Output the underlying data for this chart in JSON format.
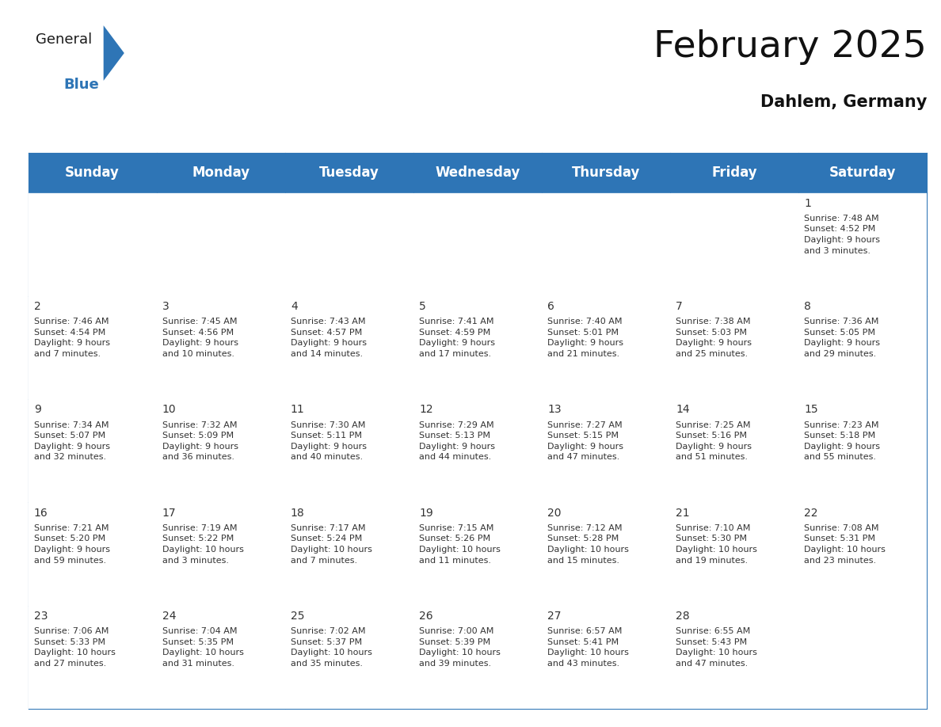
{
  "title": "February 2025",
  "subtitle": "Dahlem, Germany",
  "header_color": "#2E75B6",
  "header_text_color": "#FFFFFF",
  "cell_bg_color": "#FFFFFF",
  "border_color": "#2E75B6",
  "text_color": "#333333",
  "day_headers": [
    "Sunday",
    "Monday",
    "Tuesday",
    "Wednesday",
    "Thursday",
    "Friday",
    "Saturday"
  ],
  "title_fontsize": 34,
  "subtitle_fontsize": 15,
  "header_fontsize": 12,
  "day_num_fontsize": 10,
  "cell_fontsize": 8,
  "background_color": "#FFFFFF",
  "logo_text1": "General",
  "logo_text2": "Blue",
  "logo_color1": "#1a1a1a",
  "logo_color2": "#2E75B6",
  "logo_triangle_color": "#2E75B6",
  "weeks": [
    [
      {
        "day": null,
        "info": null
      },
      {
        "day": null,
        "info": null
      },
      {
        "day": null,
        "info": null
      },
      {
        "day": null,
        "info": null
      },
      {
        "day": null,
        "info": null
      },
      {
        "day": null,
        "info": null
      },
      {
        "day": 1,
        "info": "Sunrise: 7:48 AM\nSunset: 4:52 PM\nDaylight: 9 hours\nand 3 minutes."
      }
    ],
    [
      {
        "day": 2,
        "info": "Sunrise: 7:46 AM\nSunset: 4:54 PM\nDaylight: 9 hours\nand 7 minutes."
      },
      {
        "day": 3,
        "info": "Sunrise: 7:45 AM\nSunset: 4:56 PM\nDaylight: 9 hours\nand 10 minutes."
      },
      {
        "day": 4,
        "info": "Sunrise: 7:43 AM\nSunset: 4:57 PM\nDaylight: 9 hours\nand 14 minutes."
      },
      {
        "day": 5,
        "info": "Sunrise: 7:41 AM\nSunset: 4:59 PM\nDaylight: 9 hours\nand 17 minutes."
      },
      {
        "day": 6,
        "info": "Sunrise: 7:40 AM\nSunset: 5:01 PM\nDaylight: 9 hours\nand 21 minutes."
      },
      {
        "day": 7,
        "info": "Sunrise: 7:38 AM\nSunset: 5:03 PM\nDaylight: 9 hours\nand 25 minutes."
      },
      {
        "day": 8,
        "info": "Sunrise: 7:36 AM\nSunset: 5:05 PM\nDaylight: 9 hours\nand 29 minutes."
      }
    ],
    [
      {
        "day": 9,
        "info": "Sunrise: 7:34 AM\nSunset: 5:07 PM\nDaylight: 9 hours\nand 32 minutes."
      },
      {
        "day": 10,
        "info": "Sunrise: 7:32 AM\nSunset: 5:09 PM\nDaylight: 9 hours\nand 36 minutes."
      },
      {
        "day": 11,
        "info": "Sunrise: 7:30 AM\nSunset: 5:11 PM\nDaylight: 9 hours\nand 40 minutes."
      },
      {
        "day": 12,
        "info": "Sunrise: 7:29 AM\nSunset: 5:13 PM\nDaylight: 9 hours\nand 44 minutes."
      },
      {
        "day": 13,
        "info": "Sunrise: 7:27 AM\nSunset: 5:15 PM\nDaylight: 9 hours\nand 47 minutes."
      },
      {
        "day": 14,
        "info": "Sunrise: 7:25 AM\nSunset: 5:16 PM\nDaylight: 9 hours\nand 51 minutes."
      },
      {
        "day": 15,
        "info": "Sunrise: 7:23 AM\nSunset: 5:18 PM\nDaylight: 9 hours\nand 55 minutes."
      }
    ],
    [
      {
        "day": 16,
        "info": "Sunrise: 7:21 AM\nSunset: 5:20 PM\nDaylight: 9 hours\nand 59 minutes."
      },
      {
        "day": 17,
        "info": "Sunrise: 7:19 AM\nSunset: 5:22 PM\nDaylight: 10 hours\nand 3 minutes."
      },
      {
        "day": 18,
        "info": "Sunrise: 7:17 AM\nSunset: 5:24 PM\nDaylight: 10 hours\nand 7 minutes."
      },
      {
        "day": 19,
        "info": "Sunrise: 7:15 AM\nSunset: 5:26 PM\nDaylight: 10 hours\nand 11 minutes."
      },
      {
        "day": 20,
        "info": "Sunrise: 7:12 AM\nSunset: 5:28 PM\nDaylight: 10 hours\nand 15 minutes."
      },
      {
        "day": 21,
        "info": "Sunrise: 7:10 AM\nSunset: 5:30 PM\nDaylight: 10 hours\nand 19 minutes."
      },
      {
        "day": 22,
        "info": "Sunrise: 7:08 AM\nSunset: 5:31 PM\nDaylight: 10 hours\nand 23 minutes."
      }
    ],
    [
      {
        "day": 23,
        "info": "Sunrise: 7:06 AM\nSunset: 5:33 PM\nDaylight: 10 hours\nand 27 minutes."
      },
      {
        "day": 24,
        "info": "Sunrise: 7:04 AM\nSunset: 5:35 PM\nDaylight: 10 hours\nand 31 minutes."
      },
      {
        "day": 25,
        "info": "Sunrise: 7:02 AM\nSunset: 5:37 PM\nDaylight: 10 hours\nand 35 minutes."
      },
      {
        "day": 26,
        "info": "Sunrise: 7:00 AM\nSunset: 5:39 PM\nDaylight: 10 hours\nand 39 minutes."
      },
      {
        "day": 27,
        "info": "Sunrise: 6:57 AM\nSunset: 5:41 PM\nDaylight: 10 hours\nand 43 minutes."
      },
      {
        "day": 28,
        "info": "Sunrise: 6:55 AM\nSunset: 5:43 PM\nDaylight: 10 hours\nand 47 minutes."
      },
      {
        "day": null,
        "info": null
      }
    ]
  ]
}
